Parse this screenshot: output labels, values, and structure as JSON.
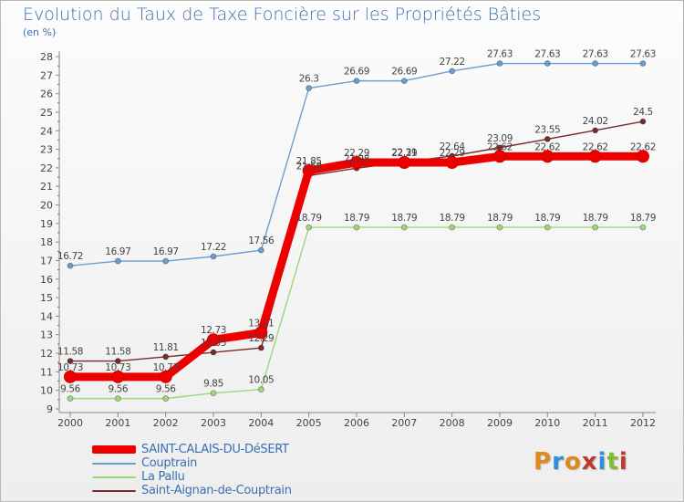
{
  "header": {
    "title": "Evolution du Taux de Taxe Foncière sur les Propriétés Bâties",
    "subtitle": "(en %)"
  },
  "logo": {
    "text": "Proxiti",
    "colors": [
      "#e08a1e",
      "#2f8fd8",
      "#e08a1e",
      "#c0392b",
      "#2f8fd8",
      "#7cbf2f",
      "#c0392b"
    ]
  },
  "chart_data": {
    "type": "line",
    "title": "Evolution du Taux de Taxe Foncière sur les Propriétés Bâties",
    "xlabel": "",
    "ylabel": "(en %)",
    "ylim": [
      9,
      28
    ],
    "x": [
      "2000",
      "2001",
      "2002",
      "2003",
      "2004",
      "2005",
      "2006",
      "2007",
      "2008",
      "2009",
      "2010",
      "2011",
      "2012"
    ],
    "yticks": [
      "9",
      "10",
      "11",
      "12",
      "13",
      "14",
      "15",
      "16",
      "17",
      "18",
      "19",
      "20",
      "21",
      "22",
      "23",
      "24",
      "25",
      "26",
      "27",
      "28"
    ],
    "grid": false,
    "legend": "bottom-left",
    "series": [
      {
        "name": "SAINT-CALAIS-DU-DéSERT",
        "values": [
          10.73,
          10.73,
          10.73,
          12.73,
          13.11,
          21.85,
          22.29,
          22.29,
          22.29,
          22.62,
          22.62,
          22.62,
          22.62
        ],
        "labels": [
          "10.73",
          "10.73",
          "10.73",
          "12.73",
          "13.11",
          "21.85",
          "22.29",
          "22.29",
          "22.29",
          "22.62",
          "22.62",
          "22.62",
          "22.62"
        ],
        "color": "#ee0000",
        "style": "thick"
      },
      {
        "name": "Couptrain",
        "values": [
          16.72,
          16.97,
          16.97,
          17.22,
          17.56,
          26.3,
          26.69,
          26.69,
          27.22,
          27.63,
          27.63,
          27.63,
          27.63
        ],
        "labels": [
          "16.72",
          "16.97",
          "16.97",
          "17.22",
          "17.56",
          "26.3",
          "26.69",
          "26.69",
          "27.22",
          "27.63",
          "27.63",
          "27.63",
          "27.63"
        ],
        "color": "#6a9ed0",
        "style": "thin"
      },
      {
        "name": "La Pallu",
        "values": [
          9.56,
          9.56,
          9.56,
          9.85,
          10.05,
          18.79,
          18.79,
          18.79,
          18.79,
          18.79,
          18.79,
          18.79,
          18.79
        ],
        "labels": [
          "9.56",
          "9.56",
          "9.56",
          "9.85",
          "10.05",
          "18.79",
          "18.79",
          "18.79",
          "18.79",
          "18.79",
          "18.79",
          "18.79",
          "18.79"
        ],
        "color": "#9ed67a",
        "style": "thin"
      },
      {
        "name": "Saint-Aignan-de-Couptrain",
        "values": [
          11.58,
          11.58,
          11.81,
          12.05,
          12.29,
          21.58,
          21.98,
          22.31,
          22.64,
          23.09,
          23.55,
          24.02,
          24.5
        ],
        "labels": [
          "11.58",
          "11.58",
          "11.81",
          "12.05",
          "12.29",
          "21.58",
          "21.98",
          "22.31",
          "22.64",
          "23.09",
          "23.55",
          "24.02",
          "24.5"
        ],
        "color": "#7a2a2a",
        "style": "thin"
      }
    ]
  }
}
